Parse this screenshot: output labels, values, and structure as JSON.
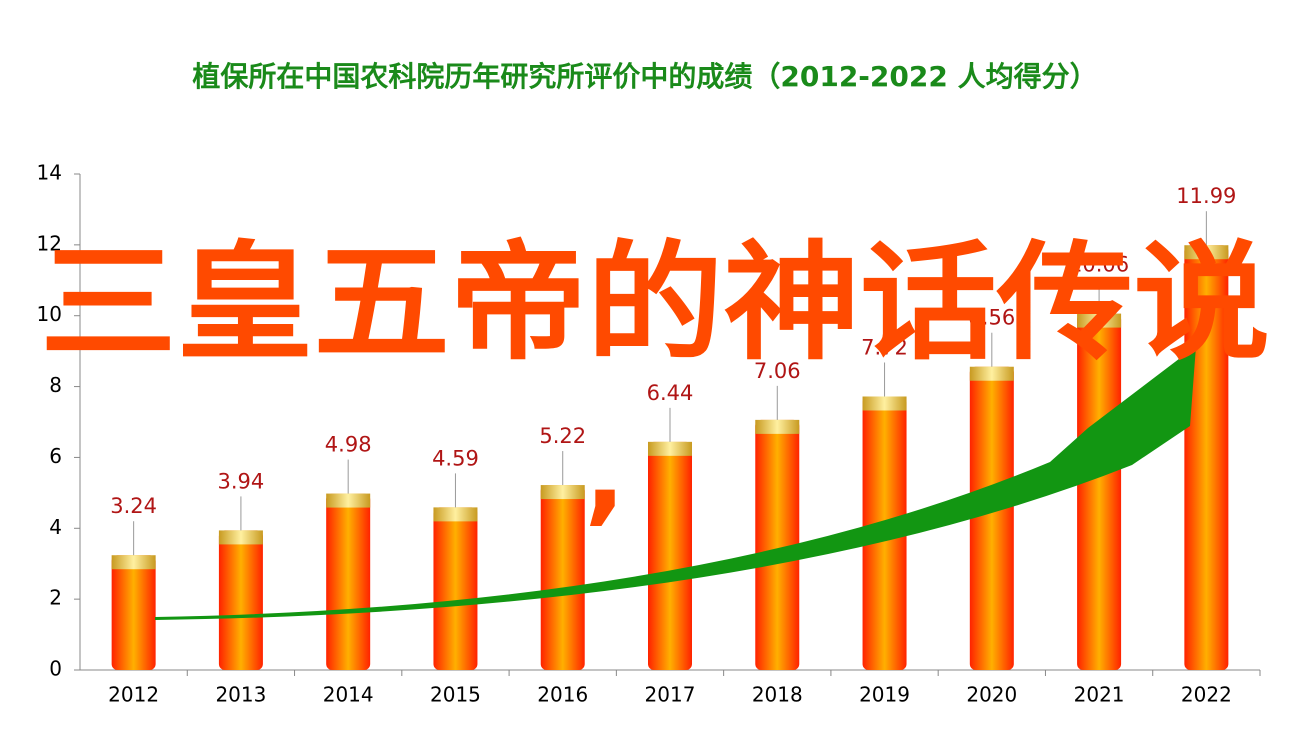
{
  "chart_data": {
    "type": "bar",
    "title": "植保所在中国农科院历年研究所评价中的成绩（2012-2022  人均得分）",
    "categories": [
      "2012",
      "2013",
      "2014",
      "2015",
      "2016",
      "2017",
      "2018",
      "2019",
      "2020",
      "2021",
      "2022"
    ],
    "values": [
      3.24,
      3.94,
      4.98,
      4.59,
      5.22,
      6.44,
      7.06,
      7.72,
      8.56,
      10.06,
      11.99
    ],
    "ylim": [
      0,
      14
    ],
    "yticks": [
      0,
      2,
      4,
      6,
      8,
      10,
      12,
      14
    ],
    "color": "#ff3300",
    "label_color": "#b01515"
  },
  "overlay_text": "三皇五帝的神话传说",
  "overlay_mark": ",",
  "overlay_color": "#ff4a00"
}
